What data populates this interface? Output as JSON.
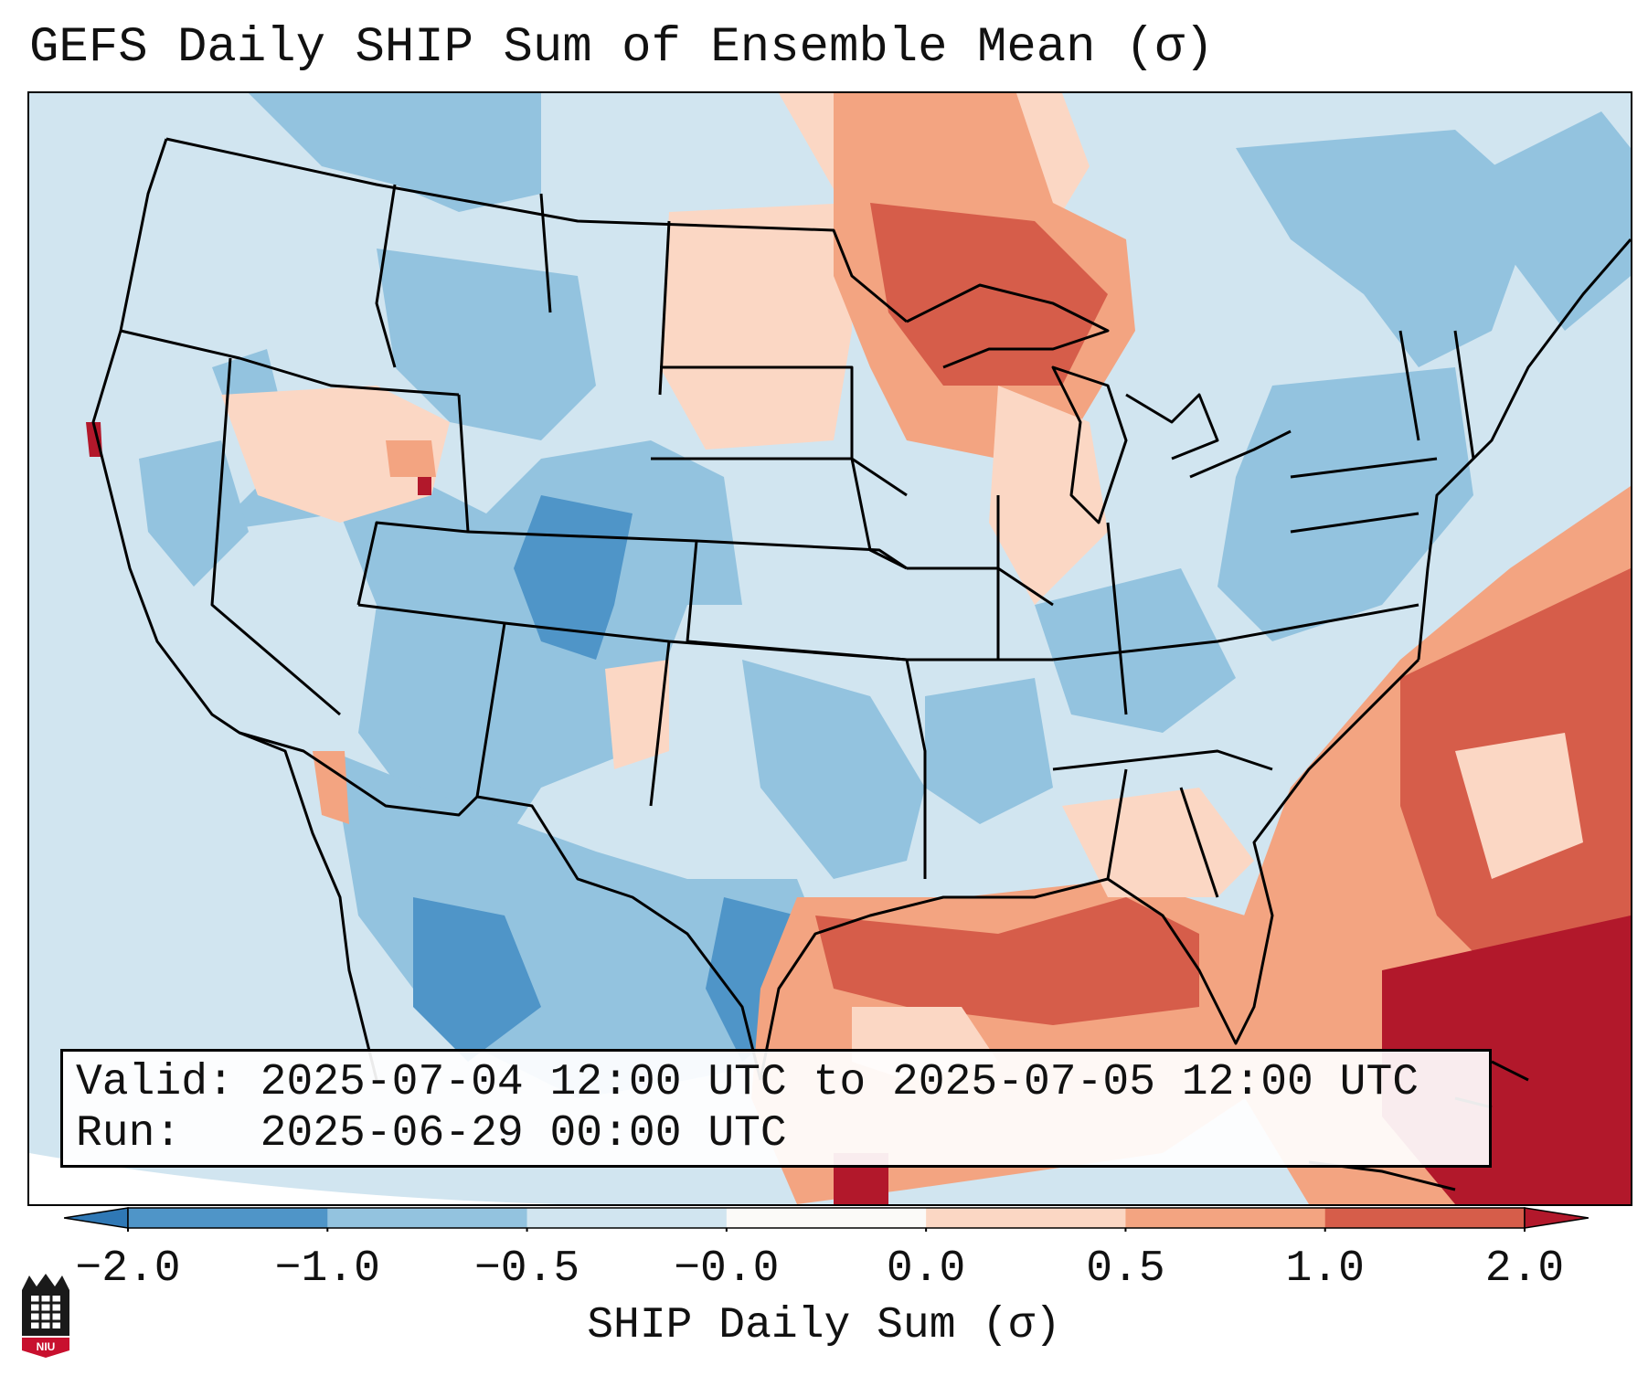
{
  "title": "GEFS Daily SHIP Sum of Ensemble Mean (σ)",
  "info": {
    "valid_label": "Valid:",
    "valid_value": "2025-07-04 12:00 UTC to 2025-07-05 12:00 UTC",
    "run_label": "Run:",
    "run_value": "2025-06-29 00:00 UTC"
  },
  "colorbar": {
    "label": "SHIP Daily Sum (σ)",
    "ticks": [
      "−2.0",
      "−1.0",
      "−0.5",
      "−0.0",
      "0.0",
      "0.5",
      "1.0",
      "2.0"
    ],
    "colors": [
      "#2f78b5",
      "#4f95c8",
      "#93c3df",
      "#d1e5f0",
      "#fbfaf8",
      "#fbd7c4",
      "#f3a481",
      "#d65d4a",
      "#b2182b"
    ]
  },
  "logo": {
    "text": "NIU"
  },
  "map": {
    "land_color": "#d1e5f0",
    "ocean_color": "#d1e5f0",
    "border_color": "#000000"
  }
}
